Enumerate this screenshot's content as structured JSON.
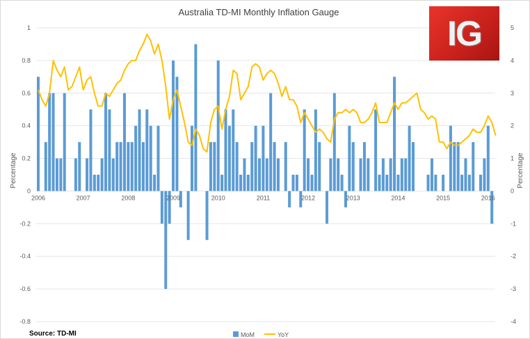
{
  "chart_data": {
    "type": "bar+line",
    "title": "Australia TD-MI Monthly Inflation Gauge",
    "ylabel_left": "Percentage",
    "ylabel_right": "Percentage",
    "ylim_left": [
      -0.8,
      1
    ],
    "ylim_right": [
      -4,
      5
    ],
    "yticks_left": [
      "1",
      "0.8",
      "0.6",
      "0.4",
      "0.2",
      "0",
      "-0.2",
      "-0.4",
      "-0.6",
      "-0.8"
    ],
    "yticks_right": [
      "5",
      "4",
      "3",
      "2",
      "1",
      "0",
      "-1",
      "-2",
      "-3",
      "-4"
    ],
    "xticks": [
      "2006",
      "2007",
      "2008",
      "2009",
      "2010",
      "2011",
      "2012",
      "2013",
      "2014",
      "2015",
      "2016"
    ],
    "x_start": "2006-01",
    "x_frequency": "monthly",
    "grid": true,
    "legend_position": "bottom",
    "colors": {
      "MoM": "#5b9bd5",
      "YoY": "#ffc000"
    },
    "series": [
      {
        "name": "MoM",
        "type": "bar",
        "axis": "left",
        "values": [
          0.7,
          0,
          0.3,
          0.6,
          0.6,
          0.2,
          0.2,
          0.6,
          0,
          0,
          0.2,
          0.3,
          0,
          0.2,
          0.5,
          0.1,
          0.1,
          0.2,
          0.6,
          0.5,
          0.2,
          0.3,
          0.3,
          0.6,
          0.3,
          0.3,
          0.4,
          0.5,
          0.3,
          0.5,
          0.4,
          0.1,
          0.4,
          -0.2,
          -0.6,
          -0.2,
          0.8,
          0.7,
          -0.1,
          0,
          -0.3,
          0.4,
          0.9,
          0,
          0,
          -0.3,
          0.3,
          0.3,
          0.8,
          0.1,
          0.5,
          0.4,
          0.5,
          0.3,
          0.1,
          0.2,
          0.1,
          0.3,
          0.4,
          0.2,
          0.4,
          0.2,
          0.6,
          0.3,
          0.2,
          0,
          0.3,
          -0.1,
          0.1,
          0.1,
          -0.1,
          0.5,
          0.2,
          0.1,
          0.5,
          0.3,
          0,
          -0.2,
          0.2,
          0.6,
          0.2,
          0.1,
          -0.1,
          0.4,
          0.3,
          0,
          0.2,
          0.3,
          0.2,
          0,
          0.5,
          0.1,
          0.2,
          0.1,
          0.2,
          0.7,
          0.1,
          0.2,
          0.2,
          0.4,
          0.3,
          0,
          0,
          0,
          0.1,
          0.2,
          0.1,
          0,
          0.1,
          0,
          0.4,
          0.3,
          0.3,
          0.1,
          0.2,
          0.1,
          0.3,
          0,
          0.1,
          0.2,
          0.4,
          -0.2,
          null
        ]
      },
      {
        "name": "YoY",
        "type": "line",
        "axis": "right",
        "values": [
          3.1,
          2.8,
          2.6,
          3.0,
          4.0,
          3.7,
          3.5,
          3.8,
          3.1,
          3.2,
          3.5,
          3.8,
          3.1,
          3.4,
          3.5,
          3.0,
          2.6,
          2.6,
          3.0,
          2.9,
          3.1,
          3.3,
          3.4,
          3.7,
          3.9,
          4.0,
          4.0,
          4.3,
          4.5,
          4.8,
          4.6,
          4.2,
          4.5,
          4.0,
          3.2,
          2.2,
          2.8,
          3.1,
          2.6,
          2.1,
          1.5,
          1.4,
          1.9,
          1.7,
          1.3,
          1.2,
          2.1,
          2.5,
          2.6,
          1.9,
          2.5,
          2.9,
          3.7,
          3.6,
          2.8,
          3.0,
          3.2,
          3.8,
          3.9,
          3.8,
          3.4,
          3.6,
          3.7,
          3.6,
          3.3,
          2.9,
          3.2,
          2.8,
          2.8,
          2.6,
          2.1,
          2.4,
          2.2,
          2.0,
          1.8,
          1.9,
          1.8,
          1.6,
          1.5,
          2.2,
          2.4,
          2.4,
          2.5,
          2.4,
          2.5,
          2.4,
          2.1,
          2.1,
          2.2,
          2.4,
          2.7,
          2.1,
          2.1,
          2.1,
          2.4,
          2.7,
          2.5,
          2.7,
          2.7,
          2.8,
          2.9,
          3.0,
          2.5,
          2.4,
          2.2,
          2.3,
          2.2,
          1.5,
          1.5,
          1.3,
          1.5,
          1.4,
          1.4,
          1.5,
          1.6,
          1.7,
          1.9,
          1.8,
          1.8,
          2.0,
          2.3,
          2.1,
          1.7
        ]
      }
    ]
  },
  "source": "Source: TD-MI",
  "logo_text": "IG"
}
